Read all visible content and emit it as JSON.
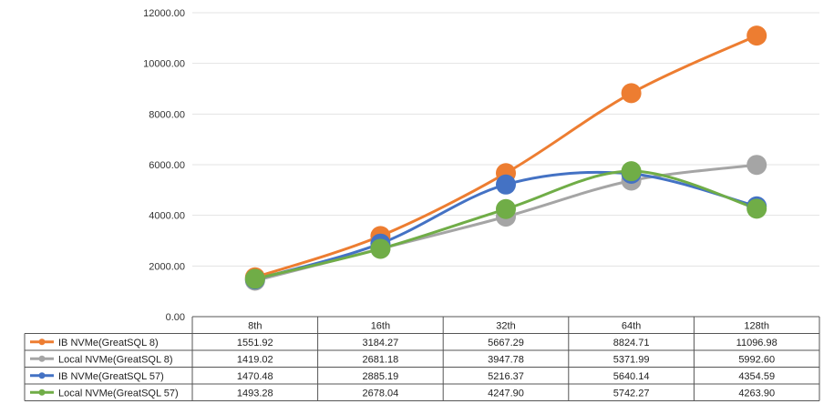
{
  "chart_data": {
    "type": "line",
    "smooth": true,
    "categories": [
      "8th",
      "16th",
      "32th",
      "64th",
      "128th"
    ],
    "ylim": [
      0,
      12000
    ],
    "yticks": [
      "0.00",
      "2000.00",
      "4000.00",
      "6000.00",
      "8000.00",
      "10000.00",
      "12000.00"
    ],
    "ytick_values": [
      0,
      2000,
      4000,
      6000,
      8000,
      10000,
      12000
    ],
    "grid": "horizontal",
    "legend": "data-table",
    "series": [
      {
        "name": "IB NVMe(GreatSQL 8)",
        "color": "#ED7D31",
        "values": [
          1551.92,
          3184.27,
          5667.29,
          8824.71,
          11096.98
        ],
        "labels": [
          "1551.92",
          "3184.27",
          "5667.29",
          "8824.71",
          "11096.98"
        ]
      },
      {
        "name": "Local NVMe(GreatSQL 8)",
        "color": "#A5A5A5",
        "values": [
          1419.02,
          2681.18,
          3947.78,
          5371.99,
          5992.6
        ],
        "labels": [
          "1419.02",
          "2681.18",
          "3947.78",
          "5371.99",
          "5992.60"
        ]
      },
      {
        "name": "IB NVMe(GreatSQL 57)",
        "color": "#4472C4",
        "values": [
          1470.48,
          2885.19,
          5216.37,
          5640.14,
          4354.59
        ],
        "labels": [
          "1470.48",
          "2885.19",
          "5216.37",
          "5640.14",
          "4354.59"
        ]
      },
      {
        "name": "Local NVMe(GreatSQL 57)",
        "color": "#70AD47",
        "values": [
          1493.28,
          2678.04,
          4247.9,
          5742.27,
          4263.9
        ],
        "labels": [
          "1493.28",
          "2678.04",
          "4247.90",
          "5742.27",
          "4263.90"
        ]
      }
    ]
  }
}
